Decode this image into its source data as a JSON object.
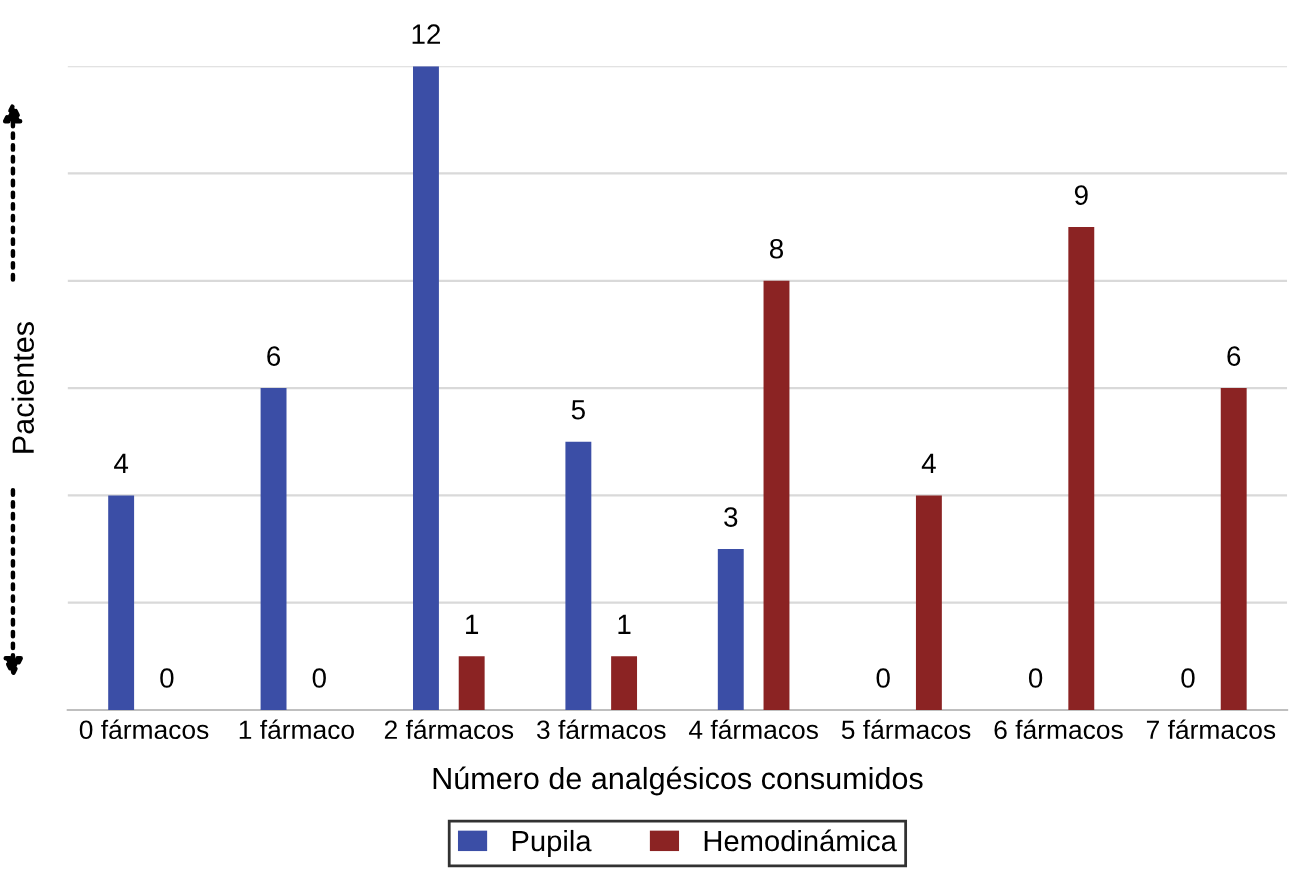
{
  "chart_data": {
    "type": "bar",
    "xlabel": "Número de analgésicos consumidos",
    "ylabel": "Pacientes",
    "categories": [
      "0 fármacos",
      "1 fármaco",
      "2 fármacos",
      "3 fármacos",
      "4 fármacos",
      "5 fármacos",
      "6 fármacos",
      "7 fármacos"
    ],
    "series": [
      {
        "name": "Pupila",
        "color": "#3b4ea6",
        "values": [
          4,
          6,
          12,
          5,
          3,
          0,
          0,
          0
        ]
      },
      {
        "name": "Hemodinámica",
        "color": "#8b2323",
        "values": [
          0,
          0,
          1,
          1,
          8,
          4,
          9,
          6
        ]
      }
    ],
    "ylim": [
      0,
      12
    ],
    "yticks": [
      {
        "value": 0,
        "label": null
      },
      {
        "value": 2,
        "label": null
      },
      {
        "value": 4,
        "label": null
      },
      {
        "value": 6,
        "label": null
      },
      {
        "value": 8,
        "label": null
      },
      {
        "value": 10,
        "label": null
      },
      {
        "value": 12,
        "label": null
      }
    ],
    "tick_labels": "x",
    "grid": "y",
    "legend": "bottom",
    "data_labels": true
  }
}
